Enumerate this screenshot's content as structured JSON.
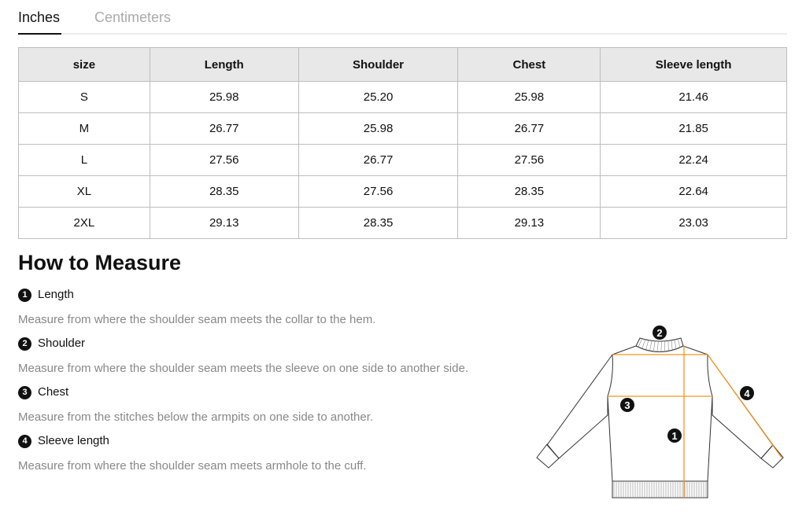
{
  "tabs": [
    {
      "label": "Inches",
      "active": true
    },
    {
      "label": "Centimeters",
      "active": false
    }
  ],
  "table": {
    "headers": [
      "size",
      "Length",
      "Shoulder",
      "Chest",
      "Sleeve length"
    ],
    "rows": [
      [
        "S",
        "25.98",
        "25.20",
        "25.98",
        "21.46"
      ],
      [
        "M",
        "26.77",
        "25.98",
        "26.77",
        "21.85"
      ],
      [
        "L",
        "27.56",
        "26.77",
        "27.56",
        "22.24"
      ],
      [
        "XL",
        "28.35",
        "27.56",
        "28.35",
        "22.64"
      ],
      [
        "2XL",
        "29.13",
        "28.35",
        "29.13",
        "23.03"
      ]
    ]
  },
  "how_to": {
    "title": "How to Measure",
    "items": [
      {
        "num": "1",
        "label": "Length",
        "desc": "Measure from where the shoulder seam meets the collar to the hem."
      },
      {
        "num": "2",
        "label": "Shoulder",
        "desc": "Measure from where the shoulder seam meets the sleeve on one side to another side."
      },
      {
        "num": "3",
        "label": "Chest",
        "desc": "Measure from the stitches below the armpits on one side to another."
      },
      {
        "num": "4",
        "label": "Sleeve length",
        "desc": "Measure from where the shoulder seam meets armhole to the cuff."
      }
    ]
  },
  "diagram": {
    "markers": [
      "1",
      "2",
      "3",
      "4"
    ],
    "line_color": "#f7941d"
  }
}
